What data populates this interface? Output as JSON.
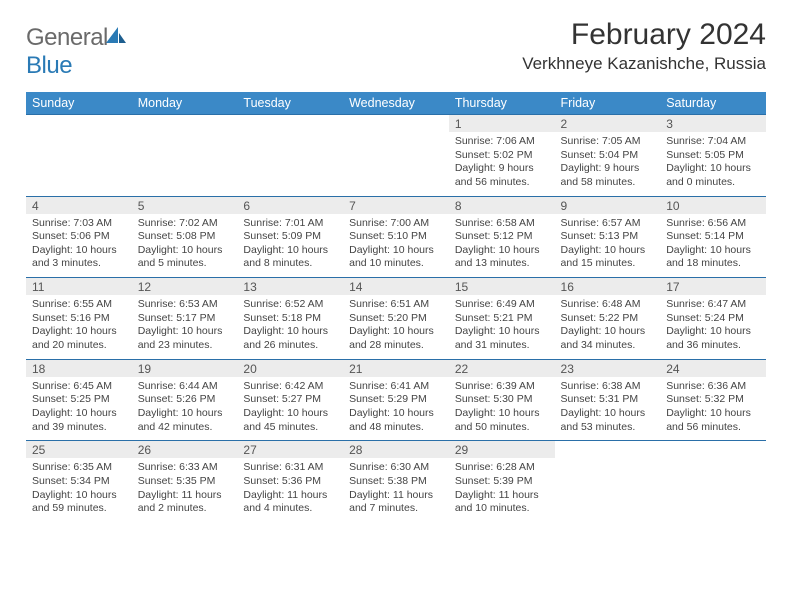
{
  "brand": {
    "name_gray": "General",
    "name_blue": "Blue"
  },
  "title": "February 2024",
  "location": "Verkhneye Kazanishche, Russia",
  "colors": {
    "header_bg": "#3b89c7",
    "header_text": "#ffffff",
    "daynum_bg": "#ececec",
    "border": "#2a6fa8",
    "text": "#333333",
    "logo_gray": "#6a6a6a",
    "logo_blue": "#2a7ab5"
  },
  "day_headers": [
    "Sunday",
    "Monday",
    "Tuesday",
    "Wednesday",
    "Thursday",
    "Friday",
    "Saturday"
  ],
  "weeks": [
    [
      {
        "n": "",
        "sunrise": "",
        "sunset": "",
        "daylight": ""
      },
      {
        "n": "",
        "sunrise": "",
        "sunset": "",
        "daylight": ""
      },
      {
        "n": "",
        "sunrise": "",
        "sunset": "",
        "daylight": ""
      },
      {
        "n": "",
        "sunrise": "",
        "sunset": "",
        "daylight": ""
      },
      {
        "n": "1",
        "sunrise": "Sunrise: 7:06 AM",
        "sunset": "Sunset: 5:02 PM",
        "daylight": "Daylight: 9 hours and 56 minutes."
      },
      {
        "n": "2",
        "sunrise": "Sunrise: 7:05 AM",
        "sunset": "Sunset: 5:04 PM",
        "daylight": "Daylight: 9 hours and 58 minutes."
      },
      {
        "n": "3",
        "sunrise": "Sunrise: 7:04 AM",
        "sunset": "Sunset: 5:05 PM",
        "daylight": "Daylight: 10 hours and 0 minutes."
      }
    ],
    [
      {
        "n": "4",
        "sunrise": "Sunrise: 7:03 AM",
        "sunset": "Sunset: 5:06 PM",
        "daylight": "Daylight: 10 hours and 3 minutes."
      },
      {
        "n": "5",
        "sunrise": "Sunrise: 7:02 AM",
        "sunset": "Sunset: 5:08 PM",
        "daylight": "Daylight: 10 hours and 5 minutes."
      },
      {
        "n": "6",
        "sunrise": "Sunrise: 7:01 AM",
        "sunset": "Sunset: 5:09 PM",
        "daylight": "Daylight: 10 hours and 8 minutes."
      },
      {
        "n": "7",
        "sunrise": "Sunrise: 7:00 AM",
        "sunset": "Sunset: 5:10 PM",
        "daylight": "Daylight: 10 hours and 10 minutes."
      },
      {
        "n": "8",
        "sunrise": "Sunrise: 6:58 AM",
        "sunset": "Sunset: 5:12 PM",
        "daylight": "Daylight: 10 hours and 13 minutes."
      },
      {
        "n": "9",
        "sunrise": "Sunrise: 6:57 AM",
        "sunset": "Sunset: 5:13 PM",
        "daylight": "Daylight: 10 hours and 15 minutes."
      },
      {
        "n": "10",
        "sunrise": "Sunrise: 6:56 AM",
        "sunset": "Sunset: 5:14 PM",
        "daylight": "Daylight: 10 hours and 18 minutes."
      }
    ],
    [
      {
        "n": "11",
        "sunrise": "Sunrise: 6:55 AM",
        "sunset": "Sunset: 5:16 PM",
        "daylight": "Daylight: 10 hours and 20 minutes."
      },
      {
        "n": "12",
        "sunrise": "Sunrise: 6:53 AM",
        "sunset": "Sunset: 5:17 PM",
        "daylight": "Daylight: 10 hours and 23 minutes."
      },
      {
        "n": "13",
        "sunrise": "Sunrise: 6:52 AM",
        "sunset": "Sunset: 5:18 PM",
        "daylight": "Daylight: 10 hours and 26 minutes."
      },
      {
        "n": "14",
        "sunrise": "Sunrise: 6:51 AM",
        "sunset": "Sunset: 5:20 PM",
        "daylight": "Daylight: 10 hours and 28 minutes."
      },
      {
        "n": "15",
        "sunrise": "Sunrise: 6:49 AM",
        "sunset": "Sunset: 5:21 PM",
        "daylight": "Daylight: 10 hours and 31 minutes."
      },
      {
        "n": "16",
        "sunrise": "Sunrise: 6:48 AM",
        "sunset": "Sunset: 5:22 PM",
        "daylight": "Daylight: 10 hours and 34 minutes."
      },
      {
        "n": "17",
        "sunrise": "Sunrise: 6:47 AM",
        "sunset": "Sunset: 5:24 PM",
        "daylight": "Daylight: 10 hours and 36 minutes."
      }
    ],
    [
      {
        "n": "18",
        "sunrise": "Sunrise: 6:45 AM",
        "sunset": "Sunset: 5:25 PM",
        "daylight": "Daylight: 10 hours and 39 minutes."
      },
      {
        "n": "19",
        "sunrise": "Sunrise: 6:44 AM",
        "sunset": "Sunset: 5:26 PM",
        "daylight": "Daylight: 10 hours and 42 minutes."
      },
      {
        "n": "20",
        "sunrise": "Sunrise: 6:42 AM",
        "sunset": "Sunset: 5:27 PM",
        "daylight": "Daylight: 10 hours and 45 minutes."
      },
      {
        "n": "21",
        "sunrise": "Sunrise: 6:41 AM",
        "sunset": "Sunset: 5:29 PM",
        "daylight": "Daylight: 10 hours and 48 minutes."
      },
      {
        "n": "22",
        "sunrise": "Sunrise: 6:39 AM",
        "sunset": "Sunset: 5:30 PM",
        "daylight": "Daylight: 10 hours and 50 minutes."
      },
      {
        "n": "23",
        "sunrise": "Sunrise: 6:38 AM",
        "sunset": "Sunset: 5:31 PM",
        "daylight": "Daylight: 10 hours and 53 minutes."
      },
      {
        "n": "24",
        "sunrise": "Sunrise: 6:36 AM",
        "sunset": "Sunset: 5:32 PM",
        "daylight": "Daylight: 10 hours and 56 minutes."
      }
    ],
    [
      {
        "n": "25",
        "sunrise": "Sunrise: 6:35 AM",
        "sunset": "Sunset: 5:34 PM",
        "daylight": "Daylight: 10 hours and 59 minutes."
      },
      {
        "n": "26",
        "sunrise": "Sunrise: 6:33 AM",
        "sunset": "Sunset: 5:35 PM",
        "daylight": "Daylight: 11 hours and 2 minutes."
      },
      {
        "n": "27",
        "sunrise": "Sunrise: 6:31 AM",
        "sunset": "Sunset: 5:36 PM",
        "daylight": "Daylight: 11 hours and 4 minutes."
      },
      {
        "n": "28",
        "sunrise": "Sunrise: 6:30 AM",
        "sunset": "Sunset: 5:38 PM",
        "daylight": "Daylight: 11 hours and 7 minutes."
      },
      {
        "n": "29",
        "sunrise": "Sunrise: 6:28 AM",
        "sunset": "Sunset: 5:39 PM",
        "daylight": "Daylight: 11 hours and 10 minutes."
      },
      {
        "n": "",
        "sunrise": "",
        "sunset": "",
        "daylight": ""
      },
      {
        "n": "",
        "sunrise": "",
        "sunset": "",
        "daylight": ""
      }
    ]
  ]
}
